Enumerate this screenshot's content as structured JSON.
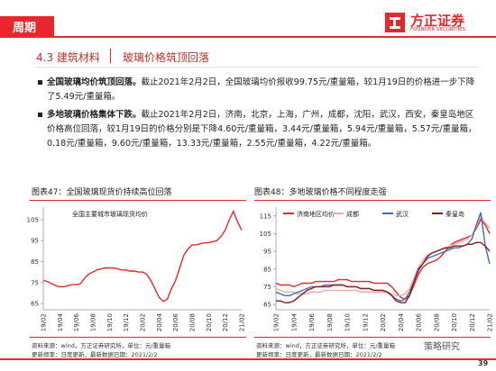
{
  "header": {
    "section": "周期",
    "logo_cn": "方正证券",
    "logo_en": "FOUNDER SECURITIES"
  },
  "heading": {
    "number_title": "4.3 建筑材料",
    "subtitle": "玻璃价格筑顶回落"
  },
  "bullets": [
    {
      "bold": "全国玻璃均价筑顶回落。",
      "text": "截止2021年2月2日，全国玻璃均价报收99.75元/重量箱，较1月19日的价格进一步下降了5.49元/重量箱。"
    },
    {
      "bold": "多地玻璃价格集体下跌。",
      "text": "截止2021年2月2日，济南，北京，上海，广州，成都，沈阳，武汉，西安，秦皇岛地区价格高位回落，较1月19日的价格分别是下降4.60元/重量箱，3.44元/重量箱，5.94元/重量箱，5.57元/重量箱，0.18元/重量箱，9.60元/重量箱，13.33元/重量箱，2.55元/重量箱，4.22元/重量箱。"
    }
  ],
  "chart_data": [
    {
      "type": "line",
      "title": "图表47：全国玻璃现货价持续高位回落",
      "categories": [
        "19/02",
        null,
        null,
        null,
        "19/04",
        null,
        null,
        null,
        "19/06",
        null,
        null,
        null,
        "19/08",
        null,
        null,
        null,
        "19/10",
        null,
        null,
        null,
        "19/12",
        null,
        null,
        null,
        "20/02",
        null,
        null,
        null,
        "20/04",
        null,
        null,
        null,
        "20/06",
        null,
        null,
        null,
        "20/08",
        null,
        null,
        null,
        "20/10",
        null,
        null,
        null,
        "20/12",
        null,
        null,
        null,
        "21/02"
      ],
      "series": [
        {
          "name": "全国主要城市玻璃现货均价",
          "color": "#e8262b",
          "values": [
            76,
            75.5,
            74.5,
            73.5,
            73,
            73,
            73.5,
            74,
            74,
            74.5,
            77,
            79,
            80,
            81,
            81.5,
            82,
            82,
            82,
            81.5,
            81,
            81,
            80.5,
            80.5,
            80,
            80,
            79,
            76,
            72,
            68,
            66,
            67,
            72,
            76,
            82,
            88,
            91,
            93,
            93,
            93.5,
            94,
            94,
            94.5,
            95,
            97,
            100,
            105,
            109,
            104,
            100
          ]
        }
      ],
      "ylim": [
        62,
        111
      ],
      "yticks": [
        65,
        75,
        85,
        95,
        105
      ],
      "source": "资料来源：wind，方正证券研究所，单位：元/重量箱",
      "note": "更新频率：日度更新，最新数据日期：2021/2/2"
    },
    {
      "type": "line",
      "title": "图表48：多地玻璃价格不同程度走强",
      "categories": [
        "19/02",
        null,
        null,
        null,
        "19/04",
        null,
        null,
        null,
        "19/06",
        null,
        null,
        null,
        "19/08",
        null,
        null,
        null,
        "19/10",
        null,
        null,
        null,
        "19/12",
        null,
        null,
        null,
        "20/02",
        null,
        null,
        null,
        "20/04",
        null,
        null,
        null,
        "20/06",
        null,
        null,
        null,
        "20/08",
        null,
        null,
        null,
        "20/10",
        null,
        null,
        null,
        "20/12",
        null,
        null,
        null,
        "21/02"
      ],
      "series": [
        {
          "name": "济南地区均价",
          "color": "#e8262b",
          "values": [
            77,
            76,
            76,
            76,
            75,
            76,
            77,
            77,
            77,
            78,
            78,
            78,
            78,
            78,
            79,
            79,
            79,
            78,
            78,
            78,
            78,
            78,
            77,
            77,
            77,
            77,
            75,
            72,
            69,
            68,
            70,
            76,
            82,
            86,
            88,
            89,
            90,
            92,
            95,
            98,
            100,
            101,
            102,
            103,
            104,
            108,
            113,
            110,
            105
          ]
        },
        {
          "name": "成都",
          "color": "#f2a7a3",
          "values": [
            74,
            73,
            72,
            72,
            72,
            71,
            71,
            71,
            72,
            72,
            72,
            73,
            73,
            73,
            73,
            73,
            73,
            73,
            73,
            72,
            72,
            72,
            72,
            72,
            72,
            72,
            71,
            70,
            70,
            71,
            74,
            80,
            86,
            90,
            93,
            94,
            95,
            96,
            97,
            98,
            99,
            100,
            101,
            102,
            104,
            109,
            115,
            111,
            108
          ]
        },
        {
          "name": "武汉",
          "color": "#3b6fc2",
          "values": [
            72,
            71,
            70,
            70,
            71,
            72,
            73,
            74,
            75,
            75,
            75,
            76,
            76,
            76,
            76,
            76,
            75,
            75,
            75,
            74,
            74,
            74,
            73,
            73,
            73,
            72,
            70,
            68,
            67,
            68,
            72,
            78,
            84,
            88,
            91,
            92,
            93,
            94,
            95,
            96,
            97,
            97,
            98,
            99,
            102,
            110,
            117,
            98,
            88
          ]
        },
        {
          "name": "秦皇岛",
          "color": "#8b1a1a",
          "values": [
            67,
            67,
            66,
            66,
            67,
            69,
            71,
            73,
            74,
            75,
            75,
            75,
            75,
            76,
            76,
            76,
            75,
            75,
            75,
            74,
            74,
            74,
            73,
            73,
            73,
            72,
            70,
            67,
            66,
            66,
            70,
            78,
            85,
            88,
            92,
            94,
            95,
            96,
            97,
            97,
            98,
            98,
            98,
            99,
            99,
            100,
            100,
            98,
            95
          ]
        }
      ],
      "ylim": [
        62,
        120
      ],
      "yticks": [
        65,
        75,
        85,
        95,
        105,
        115
      ],
      "source": "资料来源：wind，方正证券研究所，单位：元/重量箱",
      "note": "更新频率：日度更新，最新数据日期：2021/2/2"
    }
  ],
  "watermark": "策略研究",
  "page_number": 39
}
